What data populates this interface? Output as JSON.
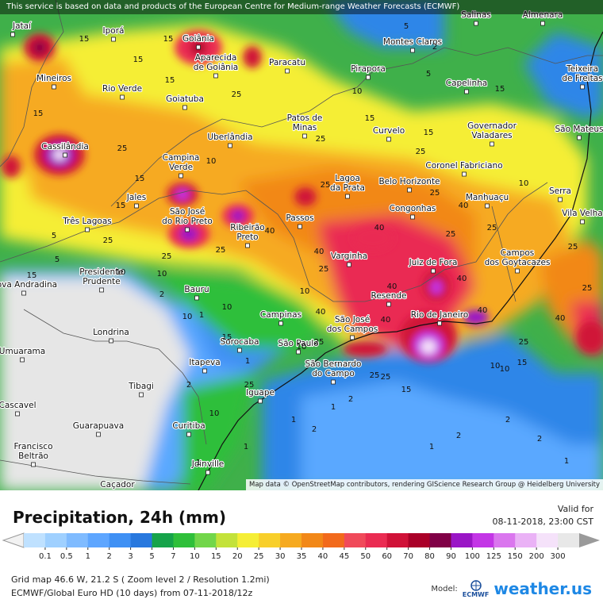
{
  "header": {
    "disclaimer": "This service is based on data and products of the European Centre for Medium-range Weather Forecasts (ECMWF)"
  },
  "map": {
    "attribution": "Map data © OpenStreetMap contributors, rendering GIScience Research Group @ Heidelberg University",
    "cities": [
      {
        "name": "Jataí",
        "lines": [
          "Jataí"
        ]
      },
      {
        "name": "Iporá",
        "lines": [
          "Iporá"
        ]
      },
      {
        "name": "Goiânia",
        "lines": [
          "Goiânia"
        ]
      },
      {
        "name": "Aparecida de Goiânia",
        "lines": [
          "Aparecida",
          "de Goiânia"
        ]
      },
      {
        "name": "Paracatu",
        "lines": [
          "Paracatu"
        ]
      },
      {
        "name": "Salinas",
        "lines": [
          "Salinas"
        ]
      },
      {
        "name": "Almenara",
        "lines": [
          "Almenara"
        ]
      },
      {
        "name": "Montes Claros",
        "lines": [
          "Montes Claros"
        ]
      },
      {
        "name": "Pirapora",
        "lines": [
          "Pirapora"
        ]
      },
      {
        "name": "Capelinha",
        "lines": [
          "Capelinha"
        ]
      },
      {
        "name": "Teixeira de Freitas",
        "lines": [
          "Teixeira",
          "de Freitas"
        ]
      },
      {
        "name": "Mineiros",
        "lines": [
          "Mineiros"
        ]
      },
      {
        "name": "Rio Verde",
        "lines": [
          "Rio Verde"
        ]
      },
      {
        "name": "Goiatuba",
        "lines": [
          "Goiatuba"
        ]
      },
      {
        "name": "Patos de Minas",
        "lines": [
          "Patos de",
          "Minas"
        ]
      },
      {
        "name": "Curvelo",
        "lines": [
          "Curvelo"
        ]
      },
      {
        "name": "Governador Valadares",
        "lines": [
          "Governador",
          "Valadares"
        ]
      },
      {
        "name": "São Mateus",
        "lines": [
          "São Mateus"
        ]
      },
      {
        "name": "Cassilândia",
        "lines": [
          "Cassilândia"
        ]
      },
      {
        "name": "Uberlândia",
        "lines": [
          "Uberlândia"
        ]
      },
      {
        "name": "Campina Verde",
        "lines": [
          "Campina",
          "Verde"
        ]
      },
      {
        "name": "Coronel Fabriciano",
        "lines": [
          "Coronel Fabriciano"
        ]
      },
      {
        "name": "Lagoa da Prata",
        "lines": [
          "Lagoa",
          "da Prata"
        ]
      },
      {
        "name": "Belo Horizonte",
        "lines": [
          "Belo Horizonte"
        ]
      },
      {
        "name": "Serra",
        "lines": [
          "Serra"
        ]
      },
      {
        "name": "Jales",
        "lines": [
          "Jales"
        ]
      },
      {
        "name": "Manhuaçu",
        "lines": [
          "Manhuaçu"
        ]
      },
      {
        "name": "Vila Velha",
        "lines": [
          "Vila Velha"
        ]
      },
      {
        "name": "São José do Rio Preto",
        "lines": [
          "São José",
          "do Rio Preto"
        ]
      },
      {
        "name": "Congonhas",
        "lines": [
          "Congonhas"
        ]
      },
      {
        "name": "Três Lagoas",
        "lines": [
          "Três Lagoas"
        ]
      },
      {
        "name": "Ribeirão Preto",
        "lines": [
          "Ribeirão",
          "Preto"
        ]
      },
      {
        "name": "Passos",
        "lines": [
          "Passos"
        ]
      },
      {
        "name": "Varginha",
        "lines": [
          "Varginha"
        ]
      },
      {
        "name": "Juiz de Fora",
        "lines": [
          "Juiz de Fora"
        ]
      },
      {
        "name": "Campos dos Goytacazes",
        "lines": [
          "Campos",
          "dos Goytacazes"
        ]
      },
      {
        "name": "Presidente Prudente",
        "lines": [
          "Presidente",
          "Prudente"
        ]
      },
      {
        "name": "Nova Andradina",
        "lines": [
          "Nova Andradina"
        ]
      },
      {
        "name": "Bauru",
        "lines": [
          "Bauru"
        ]
      },
      {
        "name": "Resende",
        "lines": [
          "Resende"
        ]
      },
      {
        "name": "Campinas",
        "lines": [
          "Campinas"
        ]
      },
      {
        "name": "São José dos Campos",
        "lines": [
          "São José",
          "dos Campos"
        ]
      },
      {
        "name": "Rio de Janeiro",
        "lines": [
          "Rio de Janeiro"
        ]
      },
      {
        "name": "Londrina",
        "lines": [
          "Londrina"
        ]
      },
      {
        "name": "Sorocaba",
        "lines": [
          "Sorocaba"
        ]
      },
      {
        "name": "São Paulo",
        "lines": [
          "São Paulo"
        ]
      },
      {
        "name": "Umuarama",
        "lines": [
          "Umuarama"
        ]
      },
      {
        "name": "Itapeva",
        "lines": [
          "Itapeva"
        ]
      },
      {
        "name": "São Bernardo do Campo",
        "lines": [
          "São Bernardo",
          "do Campo"
        ]
      },
      {
        "name": "Tibagi",
        "lines": [
          "Tibagi"
        ]
      },
      {
        "name": "Cascavel",
        "lines": [
          "Cascavel"
        ]
      },
      {
        "name": "Iguape",
        "lines": [
          "Iguape"
        ]
      },
      {
        "name": "Guarapuava",
        "lines": [
          "Guarapuava"
        ]
      },
      {
        "name": "Curitiba",
        "lines": [
          "Curitiba"
        ]
      },
      {
        "name": "Francisco Beltrão",
        "lines": [
          "Francisco",
          "Beltrão"
        ]
      },
      {
        "name": "Joinville",
        "lines": [
          "Joinville"
        ]
      },
      {
        "name": "Caçador",
        "lines": [
          "Caçador"
        ]
      }
    ],
    "contour_labels": [
      "15",
      "15",
      "15",
      "15",
      "25",
      "15",
      "5",
      "2",
      "5",
      "10",
      "15",
      "15",
      "25",
      "15",
      "25",
      "15",
      "10",
      "15",
      "25",
      "25",
      "40",
      "25",
      "25",
      "25",
      "25",
      "40",
      "40",
      "40",
      "25",
      "40",
      "25",
      "40",
      "25",
      "40",
      "10",
      "10",
      "5",
      "2",
      "1",
      "1",
      "10",
      "15",
      "10",
      "25",
      "1",
      "2",
      "1",
      "10",
      "25",
      "15",
      "10",
      "2",
      "1",
      "1",
      "2",
      "10",
      "2",
      "2",
      "1",
      "25",
      "40",
      "40",
      "40",
      "25",
      "15",
      "1",
      "2",
      "10",
      "25",
      "15",
      "10",
      "5",
      "25",
      "10",
      "25"
    ]
  },
  "legend": {
    "title": "Precipitation, 24h (mm)",
    "valid_label": "Valid for",
    "valid_time": "08-11-2018, 23:00 CST",
    "ticks": [
      "0.1",
      "0.5",
      "1",
      "2",
      "3",
      "5",
      "7",
      "10",
      "15",
      "20",
      "25",
      "30",
      "35",
      "40",
      "45",
      "50",
      "60",
      "70",
      "80",
      "90",
      "100",
      "125",
      "150",
      "200",
      "300"
    ],
    "colors": [
      "#bfe1ff",
      "#9fd0ff",
      "#7fbbff",
      "#5ea6ff",
      "#3f90f4",
      "#2878de",
      "#16a34a",
      "#2fbf3a",
      "#72d64a",
      "#c3e23a",
      "#f5ee36",
      "#f8cf2a",
      "#f6aa20",
      "#f28818",
      "#f26a1c",
      "#f04a5a",
      "#ea2c52",
      "#d01238",
      "#aa0028",
      "#800046",
      "#9a16c6",
      "#c336e6",
      "#da76ee",
      "#eab2f6",
      "#f5e2fa",
      "#e8e8e8"
    ],
    "grid_info": "Grid map 46.6 W, 21.2 S ( Zoom level 2 / Resolution 1.2mi)",
    "model_info": "ECMWF/Global Euro HD (10 days) from 07-11-2018/12z",
    "model_label": "Model:",
    "model_logo": "ECMWF",
    "brand": "weather.us"
  }
}
